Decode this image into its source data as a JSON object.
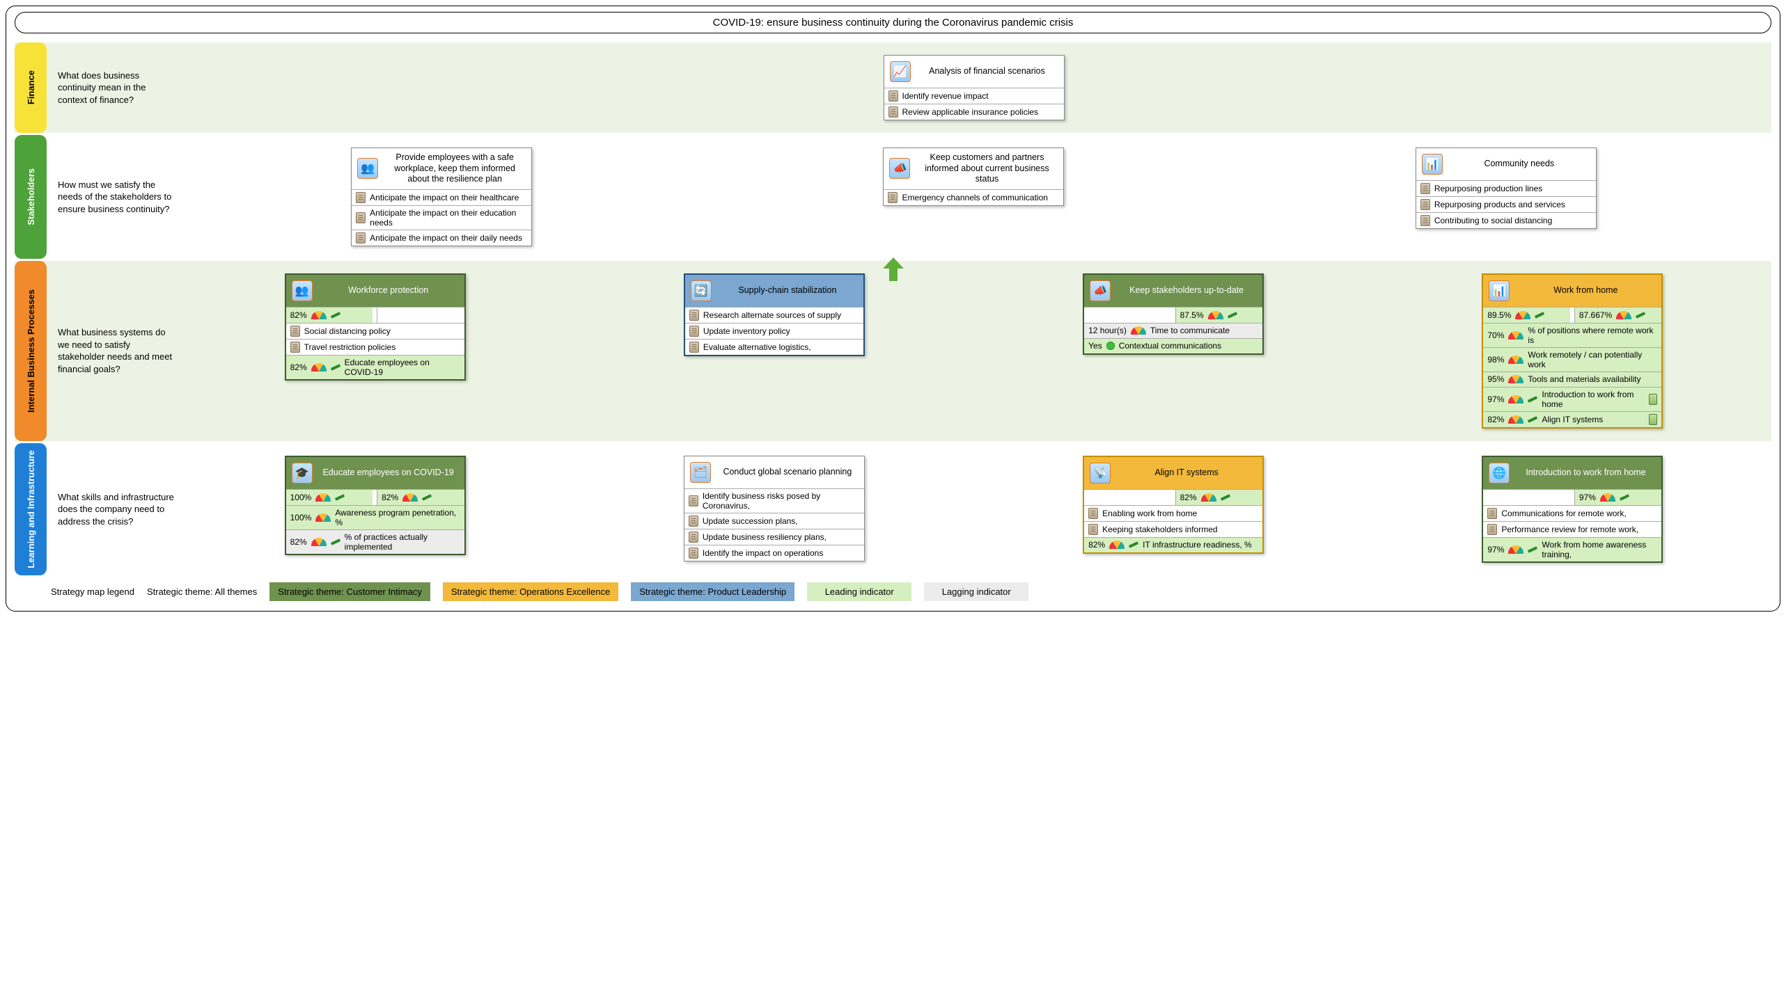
{
  "title": "COVID-19: ensure business continuity during the Coronavirus pandemic crisis",
  "colors": {
    "finance_tab": "#f7e23a",
    "stakeholders_tab": "#4da33a",
    "ibp_tab": "#f08a2a",
    "li_tab": "#1f7fd6",
    "band_tint_alt": "#edf3e4",
    "theme_intimacy": "#6f924f",
    "theme_operations": "#f3b93b",
    "theme_product": "#7ba7d0",
    "leading": "#d6efc1",
    "lagging": "#ececec"
  },
  "perspectives": [
    {
      "key": "finance",
      "label": "Finance",
      "tab_color": "#f7e23a",
      "band_bg": "#edf3e4",
      "question": "What does business continuity mean in the context of finance?"
    },
    {
      "key": "stakeholders",
      "label": "Stakeholders",
      "tab_color": "#4da33a",
      "band_bg": "#ffffff",
      "question": "How must we satisfy the needs of the stakeholders to ensure business continuity?"
    },
    {
      "key": "ibp",
      "label": "Internal Business Processes",
      "tab_color": "#f08a2a",
      "band_bg": "#edf3e4",
      "question": "What business systems do we need to satisfy stakeholder needs and meet financial goals?"
    },
    {
      "key": "li",
      "label": "Learning and Infrastructure",
      "tab_color": "#1f7fd6",
      "band_bg": "#ffffff",
      "question": "What skills and infrastructure does the company need to address the crisis?"
    }
  ],
  "cards": {
    "finance": [
      {
        "title": "Analysis of financial scenarios",
        "icon": "📈",
        "theme": "none",
        "rows": [
          {
            "type": "note",
            "text": "Identify revenue impact"
          },
          {
            "type": "note",
            "text": "Review applicable insurance policies"
          }
        ]
      }
    ],
    "stakeholders": [
      {
        "title": "Provide employees with a safe workplace, keep them informed about the resilience plan",
        "icon": "👥",
        "theme": "none",
        "rows": [
          {
            "type": "note",
            "text": "Anticipate the impact on their healthcare"
          },
          {
            "type": "note",
            "text": "Anticipate the impact on their education needs"
          },
          {
            "type": "note",
            "text": "Anticipate the impact on their daily needs"
          }
        ]
      },
      {
        "title": "Keep customers and partners informed about current business status",
        "icon": "📣",
        "theme": "none",
        "rows": [
          {
            "type": "note",
            "text": "Emergency channels of communication"
          }
        ]
      },
      {
        "title": "Community needs",
        "icon": "📊",
        "theme": "none",
        "rows": [
          {
            "type": "note",
            "text": "Repurposing production lines"
          },
          {
            "type": "note",
            "text": "Repurposing products and services"
          },
          {
            "type": "note",
            "text": "Contributing to social distancing"
          }
        ]
      }
    ],
    "ibp": [
      {
        "title": "Workforce protection",
        "icon": "👥",
        "theme": "intimacy",
        "rows": [
          {
            "type": "split",
            "left": {
              "kpi": "lead",
              "value": "82%",
              "gauge": true,
              "pencil": true
            },
            "right": {
              "kpi": "plain",
              "value": ""
            }
          },
          {
            "type": "note",
            "text": "Social distancing policy"
          },
          {
            "type": "note",
            "text": "Travel restriction policies"
          },
          {
            "type": "kpi",
            "kpi": "lead",
            "value": "82%",
            "gauge": true,
            "pencil": true,
            "text": "Educate employees on COVID-19"
          }
        ]
      },
      {
        "title": "Supply-chain stabilization",
        "icon": "🔄",
        "theme": "product",
        "rows": [
          {
            "type": "note",
            "text": "Research alternate sources of supply"
          },
          {
            "type": "note",
            "text": "Update inventory policy"
          },
          {
            "type": "note",
            "text": "Evaluate alternative logistics,"
          }
        ]
      },
      {
        "title": "Keep stakeholders up-to-date",
        "icon": "📣",
        "theme": "intimacy",
        "rows": [
          {
            "type": "split",
            "left": {
              "kpi": "plain",
              "value": ""
            },
            "right": {
              "kpi": "lead",
              "value": "87.5%",
              "gauge": true,
              "pencil": true
            }
          },
          {
            "type": "kpi",
            "kpi": "lag",
            "value": "12 hour(s)",
            "gauge": true,
            "text": "Time to communicate"
          },
          {
            "type": "kpi",
            "kpi": "lead",
            "value": "Yes",
            "dot": true,
            "text": "Contextual communications"
          }
        ]
      },
      {
        "title": "Work from home",
        "icon": "📊",
        "theme": "operations",
        "rows": [
          {
            "type": "split",
            "left": {
              "kpi": "lead",
              "value": "89.5%",
              "gauge": true,
              "pencil": true
            },
            "right": {
              "kpi": "lead",
              "value": "87.667%",
              "gauge": true,
              "pencil": true
            }
          },
          {
            "type": "kpi",
            "kpi": "lead",
            "value": "70%",
            "gauge": true,
            "text": "% of positions where remote work is"
          },
          {
            "type": "kpi",
            "kpi": "lead",
            "value": "98%",
            "gauge": true,
            "text": "Work remotely / can potentially work"
          },
          {
            "type": "kpi",
            "kpi": "lead",
            "value": "95%",
            "gauge": true,
            "text": "Tools and materials availability"
          },
          {
            "type": "kpi",
            "kpi": "lead",
            "value": "97%",
            "gauge": true,
            "pencil": true,
            "text": "Introduction to work from home",
            "batt": true
          },
          {
            "type": "kpi",
            "kpi": "lead",
            "value": "82%",
            "gauge": true,
            "pencil": true,
            "text": "Align IT systems",
            "batt": true
          }
        ]
      }
    ],
    "li": [
      {
        "title": "Educate employees on COVID-19",
        "icon": "🎓",
        "theme": "intimacy",
        "rows": [
          {
            "type": "split",
            "left": {
              "kpi": "lead",
              "value": "100%",
              "gauge": true,
              "pencil": true
            },
            "right": {
              "kpi": "lead",
              "value": "82%",
              "gauge": true,
              "pencil": true
            }
          },
          {
            "type": "kpi",
            "kpi": "lead",
            "value": "100%",
            "gauge": true,
            "text": "Awareness program penetration, %"
          },
          {
            "type": "kpi",
            "kpi": "lag",
            "value": "82%",
            "gauge": true,
            "pencil": true,
            "text": "% of practices actually implemented"
          }
        ]
      },
      {
        "title": "Conduct global scenario planning",
        "icon": "🗂",
        "theme": "none",
        "rows": [
          {
            "type": "note",
            "text": "Identify business risks posed by Coronavirus,"
          },
          {
            "type": "note",
            "text": "Update succession plans,"
          },
          {
            "type": "note",
            "text": "Update business resiliency plans,"
          },
          {
            "type": "note",
            "text": "Identify the impact on operations"
          }
        ]
      },
      {
        "title": "Align IT systems",
        "icon": "📡",
        "theme": "operations",
        "rows": [
          {
            "type": "split",
            "left": {
              "kpi": "plain",
              "value": ""
            },
            "right": {
              "kpi": "lead",
              "value": "82%",
              "gauge": true,
              "pencil": true
            }
          },
          {
            "type": "note",
            "text": "Enabling work from home"
          },
          {
            "type": "note",
            "text": "Keeping stakeholders informed"
          },
          {
            "type": "kpi",
            "kpi": "lead",
            "value": "82%",
            "gauge": true,
            "pencil": true,
            "text": "IT infrastructure readiness, %"
          }
        ]
      },
      {
        "title": "Introduction to work from home",
        "icon": "🌐",
        "theme": "intimacy",
        "rows": [
          {
            "type": "split",
            "left": {
              "kpi": "plain",
              "value": ""
            },
            "right": {
              "kpi": "lead",
              "value": "97%",
              "gauge": true,
              "pencil": true
            }
          },
          {
            "type": "note",
            "text": "Communications for remote work,"
          },
          {
            "type": "note",
            "text": "Performance review for remote work,"
          },
          {
            "type": "kpi",
            "kpi": "lead",
            "value": "97%",
            "gauge": true,
            "pencil": true,
            "text": "Work from home awareness training,"
          }
        ]
      }
    ]
  },
  "legend": {
    "label": "Strategy map legend",
    "all": "Strategic theme: All themes",
    "intimacy": "Strategic theme: Customer Intimacy",
    "operations": "Strategic theme: Operations Excellence",
    "product": "Strategic theme: Product Leadership",
    "leading": "Leading indicator",
    "lagging": "Lagging indicator"
  }
}
